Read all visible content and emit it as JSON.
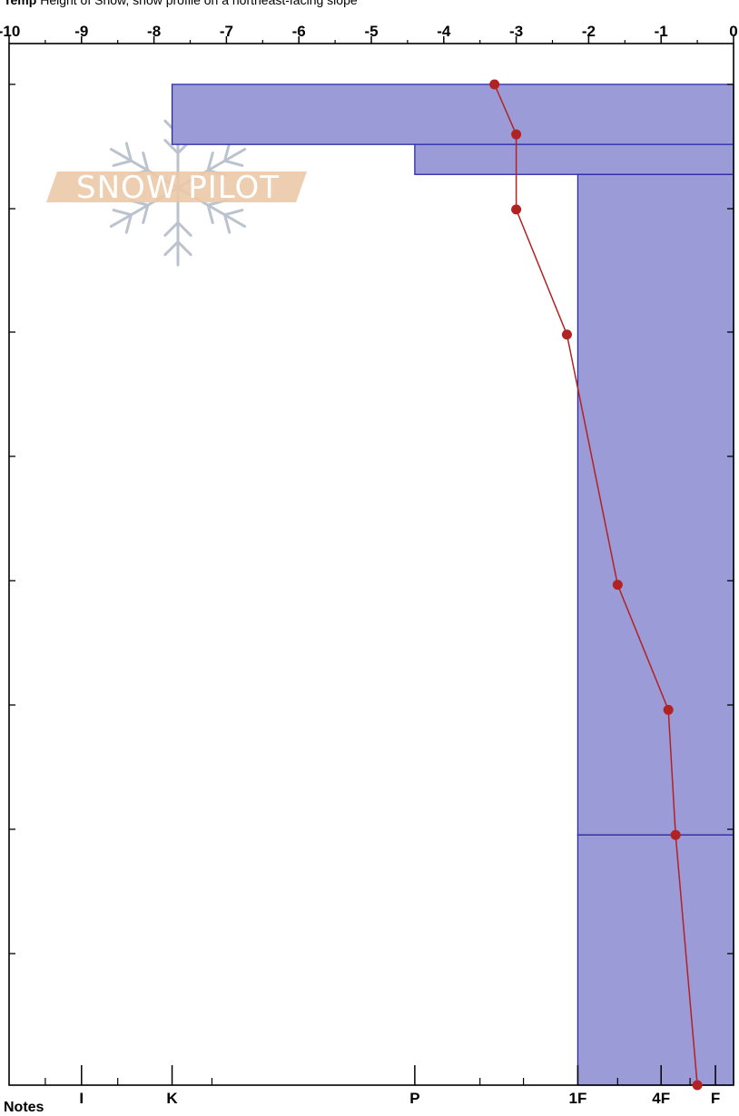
{
  "header": {
    "label": "Temp",
    "text": "Height of Snow, snow profile on a northeast-facing slope"
  },
  "watermark": {
    "text": "SNOW PILOT"
  },
  "notes_label": "Notes",
  "colors": {
    "layer_fill": "#9b9bd7",
    "layer_stroke": "#2a2aa8",
    "temp_line": "#b22222"
  },
  "chart_data": {
    "type": "line",
    "title": "",
    "top_axis": {
      "label": "",
      "range": [
        -10,
        0
      ],
      "ticks": [
        -10,
        -9,
        -8,
        -7,
        -6,
        -5,
        -4,
        -3,
        -2,
        -1,
        0
      ],
      "tick_labels": [
        "-10",
        "-9",
        "-8",
        "-7",
        "-6",
        "-5",
        "-4",
        "-3",
        "-2",
        "-1",
        "0"
      ]
    },
    "bottom_axis": {
      "label": "",
      "hardness_labels": [
        {
          "label": "I",
          "value": -9
        },
        {
          "label": "K",
          "value": -7.75
        },
        {
          "label": "P",
          "value": -4.4
        },
        {
          "label": "1F",
          "value": -2.15
        },
        {
          "label": "4F",
          "value": -1.0
        },
        {
          "label": "F",
          "value": -0.25
        }
      ]
    },
    "layers": [
      {
        "hardness_value": -7.75,
        "top": 0,
        "bottom": 0.06
      },
      {
        "hardness_value": -4.4,
        "top": 0.06,
        "bottom": 0.09
      },
      {
        "hardness_value": -2.15,
        "top": 0.09,
        "bottom": 0.75
      },
      {
        "hardness_value": -2.15,
        "top": 0.75,
        "bottom": 1.0
      }
    ],
    "series": [
      {
        "values": [
          {
            "temp": -3.3,
            "depth": 0
          },
          {
            "temp": -3.0,
            "depth": 0.05
          },
          {
            "temp": -3.0,
            "depth": 0.125
          },
          {
            "temp": -2.3,
            "depth": 0.25
          },
          {
            "temp": -1.6,
            "depth": 0.5
          },
          {
            "temp": -0.9,
            "depth": 0.625
          },
          {
            "temp": -0.8,
            "depth": 0.75
          },
          {
            "temp": -0.5,
            "depth": 1.0
          }
        ]
      }
    ],
    "grid": false,
    "legend": "none"
  }
}
